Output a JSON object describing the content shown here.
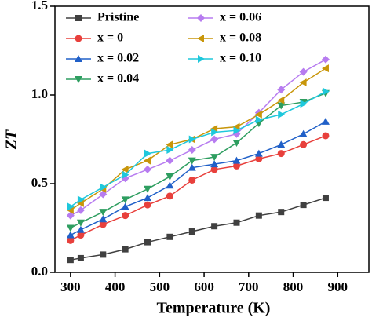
{
  "chart_data": {
    "type": "line",
    "xlabel": "Temperature (K)",
    "ylabel": "ZT",
    "x": [
      300,
      323,
      373,
      423,
      473,
      523,
      573,
      623,
      673,
      723,
      773,
      823,
      873
    ],
    "xlim": [
      265,
      970
    ],
    "xticks": [
      300,
      400,
      500,
      600,
      700,
      800,
      900
    ],
    "ylim": [
      0,
      1.5
    ],
    "yticks": [
      {
        "value": 0,
        "label": "0.0"
      },
      {
        "value": 0.5,
        "label": "0.5"
      },
      {
        "value": 1.0,
        "label": "1.0"
      },
      {
        "value": 1.5,
        "label": "1.5"
      }
    ],
    "series": [
      {
        "name": "Pristine",
        "color": "#404040",
        "marker": "square",
        "values": [
          0.07,
          0.08,
          0.1,
          0.13,
          0.17,
          0.2,
          0.23,
          0.26,
          0.28,
          0.32,
          0.34,
          0.38,
          0.42
        ]
      },
      {
        "name": "x = 0",
        "color": "#e8403c",
        "marker": "circle",
        "values": [
          0.18,
          0.21,
          0.27,
          0.32,
          0.38,
          0.43,
          0.52,
          0.58,
          0.6,
          0.64,
          0.67,
          0.72,
          0.77
        ]
      },
      {
        "name": "x = 0.02",
        "color": "#2060c8",
        "marker": "triangle-up",
        "values": [
          0.21,
          0.24,
          0.3,
          0.37,
          0.42,
          0.49,
          0.59,
          0.61,
          0.63,
          0.67,
          0.72,
          0.78,
          0.85
        ]
      },
      {
        "name": "x = 0.04",
        "color": "#2e9e60",
        "marker": "triangle-down",
        "values": [
          0.25,
          0.28,
          0.34,
          0.41,
          0.47,
          0.54,
          0.63,
          0.65,
          0.73,
          0.84,
          0.94,
          0.96,
          1.01
        ]
      },
      {
        "name": "x = 0.06",
        "color": "#b77cf0",
        "marker": "diamond",
        "values": [
          0.32,
          0.35,
          0.44,
          0.53,
          0.58,
          0.63,
          0.69,
          0.75,
          0.78,
          0.9,
          1.03,
          1.13,
          1.2
        ]
      },
      {
        "name": "x = 0.08",
        "color": "#c8960a",
        "marker": "triangle-left",
        "values": [
          0.35,
          0.39,
          0.47,
          0.58,
          0.63,
          0.72,
          0.75,
          0.81,
          0.82,
          0.89,
          0.97,
          1.07,
          1.15
        ]
      },
      {
        "name": "x = 0.10",
        "color": "#1ec8dc",
        "marker": "triangle-right",
        "values": [
          0.37,
          0.41,
          0.48,
          0.55,
          0.67,
          0.69,
          0.75,
          0.79,
          0.8,
          0.86,
          0.89,
          0.95,
          1.02
        ]
      }
    ]
  }
}
